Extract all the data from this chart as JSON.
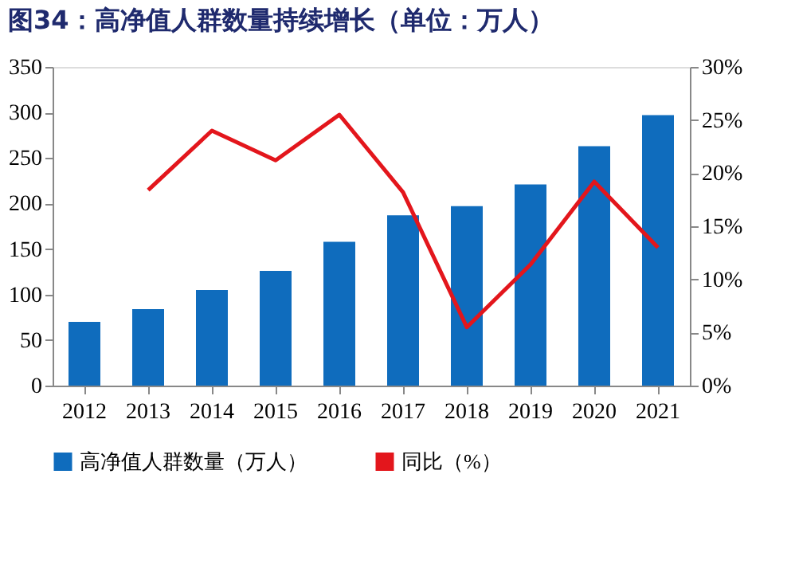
{
  "chart_data": {
    "type": "bar",
    "title": "图34：高净值人群数量持续增长（单位：万人）",
    "categories": [
      "2012",
      "2013",
      "2014",
      "2015",
      "2016",
      "2017",
      "2018",
      "2019",
      "2020",
      "2021"
    ],
    "series": [
      {
        "name": "高净值人群数量（万人）",
        "color": "#0f6cbd",
        "values": [
          70,
          84,
          105,
          126,
          158,
          187,
          197,
          221,
          263,
          297
        ]
      },
      {
        "name": "同比（%）",
        "color": "#e3161c",
        "type": "line",
        "axis": "y2",
        "values": [
          null,
          18.4,
          24.0,
          21.2,
          25.5,
          18.2,
          5.5,
          11.4,
          19.2,
          13.0
        ]
      }
    ],
    "ylim": [
      0,
      350
    ],
    "yticks": [
      0,
      50,
      100,
      150,
      200,
      250,
      300,
      350
    ],
    "y2lim": [
      0,
      30
    ],
    "y2ticks": [
      {
        "value": 0,
        "label": "0%"
      },
      {
        "value": 5,
        "label": "5%"
      },
      {
        "value": 10,
        "label": "10%"
      },
      {
        "value": 15,
        "label": "15%"
      },
      {
        "value": 20,
        "label": "20%"
      },
      {
        "value": 25,
        "label": "25%"
      },
      {
        "value": 30,
        "label": "30%"
      }
    ],
    "grid": false,
    "legend": "bottom",
    "marker": "none",
    "line_style": "solid"
  }
}
